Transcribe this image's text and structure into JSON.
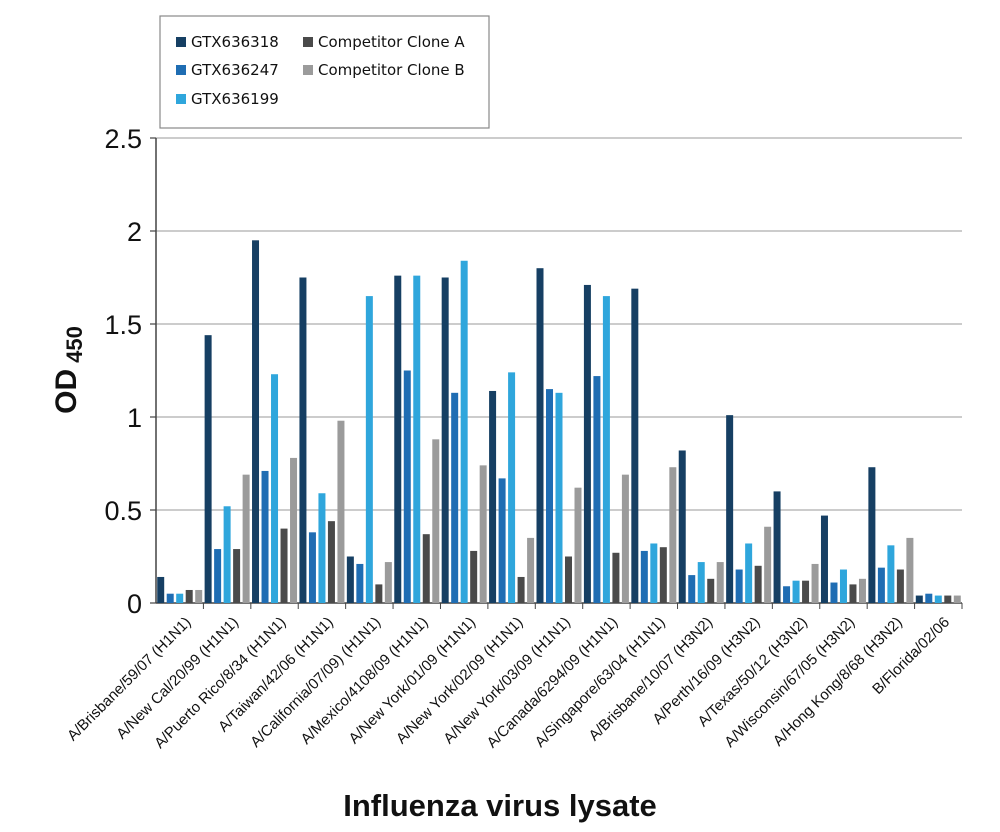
{
  "chart_data": {
    "type": "bar",
    "title": "",
    "xlabel": "Influenza virus lysate",
    "ylabel": "OD",
    "ylabel_sub": "450",
    "ylim": [
      0,
      2.5
    ],
    "yticks": [
      0,
      0.5,
      1,
      1.5,
      2,
      2.5
    ],
    "ytick_labels": [
      "0",
      "0.5",
      "1",
      "1.5",
      "2",
      "2.5"
    ],
    "grid": true,
    "legend_position": "top-left",
    "categories": [
      "A/Brisbane/59/07 (H1N1)",
      "A/New Cal/20/99 (H1N1)",
      "A/Puerto Rico/8/34 (H1N1)",
      "A/Taiwan/42/06 (H1N1)",
      "A/California/07/09) (H1N1)",
      "A/Mexico/4108/09 (H1N1)",
      "A/New York/01/09 (H1N1)",
      "A/New York/02/09 (H1N1)",
      "A/New York/03/09 (H1N1)",
      "A/Canada/6294/09 (H1N1)",
      "A/Singapore/63/04 (H1N1)",
      "A/Brisbane/10/07 (H3N2)",
      "A/Perth/16/09 (H3N2)",
      "A/Texas/50/12 (H3N2)",
      "A/Wisconsin/67/05 (H3N2)",
      "A/Hong Kong/8/68 (H3N2)",
      "B/Florida/02/06"
    ],
    "series": [
      {
        "name": "GTX636318",
        "color": "#163f63",
        "values": [
          0.14,
          1.44,
          1.95,
          1.75,
          0.25,
          1.76,
          1.75,
          1.14,
          1.8,
          1.71,
          1.69,
          0.82,
          1.01,
          0.6,
          0.47,
          0.73,
          0.04
        ]
      },
      {
        "name": "GTX636247",
        "color": "#1f6db3",
        "values": [
          0.05,
          0.29,
          0.71,
          0.38,
          0.21,
          1.25,
          1.13,
          0.67,
          1.15,
          1.22,
          0.28,
          0.15,
          0.18,
          0.09,
          0.11,
          0.19,
          0.05
        ]
      },
      {
        "name": "GTX636199",
        "color": "#2fa6dc",
        "values": [
          0.05,
          0.52,
          1.23,
          0.59,
          1.65,
          1.76,
          1.84,
          1.24,
          1.13,
          1.65,
          0.32,
          0.22,
          0.32,
          0.12,
          0.18,
          0.31,
          0.04
        ]
      },
      {
        "name": "Competitor Clone A",
        "color": "#4a4a4a",
        "values": [
          0.07,
          0.29,
          0.4,
          0.44,
          0.1,
          0.37,
          0.28,
          0.14,
          0.25,
          0.27,
          0.3,
          0.13,
          0.2,
          0.12,
          0.1,
          0.18,
          0.04
        ]
      },
      {
        "name": "Competitor Clone B",
        "color": "#9b9b9b",
        "values": [
          0.07,
          0.69,
          0.78,
          0.98,
          0.22,
          0.88,
          0.74,
          0.35,
          0.62,
          0.69,
          0.73,
          0.22,
          0.41,
          0.21,
          0.13,
          0.35,
          0.04
        ]
      }
    ]
  }
}
